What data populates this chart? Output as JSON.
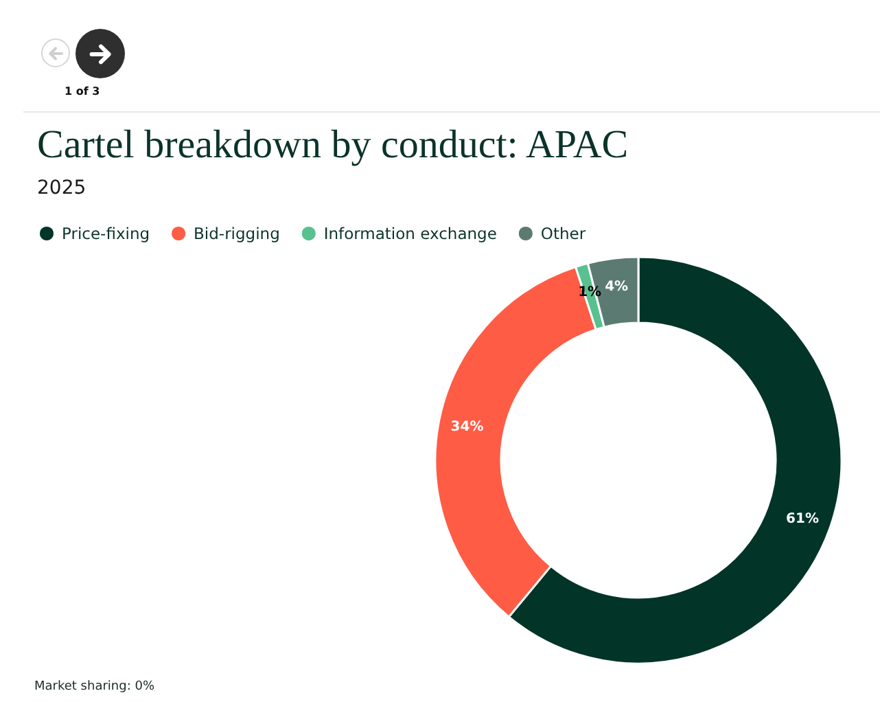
{
  "chart_data": {
    "type": "donut",
    "title": "Cartel breakdown by conduct: APAC",
    "subtitle": "2025",
    "categories": [
      "Price-fixing",
      "Bid-rigging",
      "Information exchange",
      "Other"
    ],
    "values": [
      61,
      34,
      1,
      4
    ],
    "colors": [
      "#023428",
      "#ff5c45",
      "#58c18f",
      "#5b7b72"
    ],
    "value_labels": [
      "61%",
      "34%",
      "1%",
      "4%"
    ],
    "legend": "top left",
    "annotations": [
      "1 of 3",
      "Market sharing: 0%"
    ]
  }
}
